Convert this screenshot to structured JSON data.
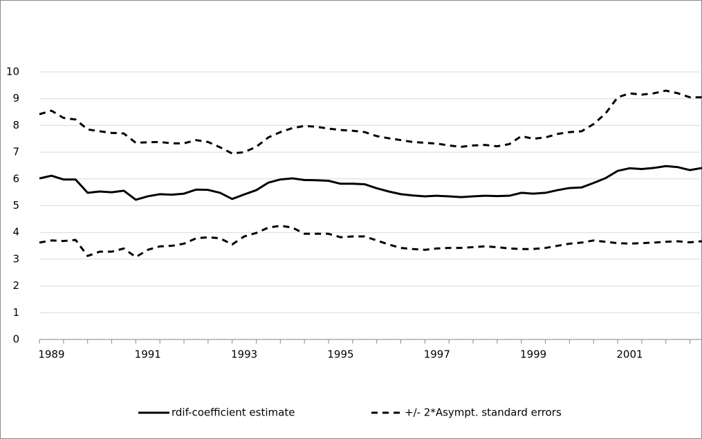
{
  "chart_data": {
    "type": "line",
    "categories": [
      null,
      "1989",
      null,
      null,
      null,
      null,
      null,
      null,
      null,
      "1991",
      null,
      null,
      null,
      null,
      null,
      null,
      null,
      "1993",
      null,
      null,
      null,
      null,
      null,
      null,
      null,
      "1995",
      null,
      null,
      null,
      null,
      null,
      null,
      null,
      "1997",
      null,
      null,
      null,
      null,
      null,
      null,
      null,
      "1999",
      null,
      null,
      null,
      null,
      null,
      null,
      null,
      "2001",
      null,
      null,
      null,
      null,
      null,
      null
    ],
    "series": [
      {
        "name": "rdif-coefficient estimate",
        "color": "#000000",
        "dashed": false,
        "values": [
          6.02,
          6.12,
          5.98,
          5.98,
          5.48,
          5.53,
          5.5,
          5.56,
          5.22,
          5.35,
          5.43,
          5.41,
          5.45,
          5.6,
          5.59,
          5.48,
          5.25,
          5.42,
          5.58,
          5.86,
          5.98,
          6.02,
          5.96,
          5.95,
          5.93,
          5.82,
          5.82,
          5.8,
          5.65,
          5.53,
          5.43,
          5.38,
          5.35,
          5.37,
          5.35,
          5.32,
          5.35,
          5.37,
          5.36,
          5.37,
          5.48,
          5.45,
          5.48,
          5.58,
          5.66,
          5.68,
          5.85,
          6.03,
          6.3,
          6.4,
          6.37,
          6.41,
          6.48,
          6.44,
          6.33,
          6.41
        ]
      },
      {
        "name": "+/- 2*Asympt. standard errors",
        "color": "#000000",
        "dashed": true,
        "upper": [
          8.42,
          8.55,
          8.28,
          8.22,
          7.85,
          7.78,
          7.72,
          7.7,
          7.35,
          7.37,
          7.38,
          7.33,
          7.33,
          7.45,
          7.38,
          7.18,
          6.95,
          7.0,
          7.2,
          7.55,
          7.75,
          7.9,
          7.98,
          7.95,
          7.88,
          7.83,
          7.8,
          7.75,
          7.6,
          7.52,
          7.45,
          7.38,
          7.35,
          7.32,
          7.25,
          7.2,
          7.25,
          7.27,
          7.22,
          7.3,
          7.6,
          7.5,
          7.55,
          7.68,
          7.75,
          7.78,
          8.05,
          8.45,
          9.05,
          9.2,
          9.15,
          9.2,
          9.3,
          9.2,
          9.05,
          9.05
        ],
        "lower": [
          3.62,
          3.7,
          3.68,
          3.72,
          3.12,
          3.28,
          3.28,
          3.4,
          3.08,
          3.35,
          3.48,
          3.5,
          3.58,
          3.78,
          3.82,
          3.78,
          3.55,
          3.85,
          3.98,
          4.18,
          4.25,
          4.18,
          3.95,
          3.95,
          3.95,
          3.82,
          3.85,
          3.85,
          3.7,
          3.55,
          3.42,
          3.38,
          3.35,
          3.4,
          3.42,
          3.42,
          3.45,
          3.48,
          3.45,
          3.4,
          3.38,
          3.38,
          3.42,
          3.5,
          3.58,
          3.62,
          3.7,
          3.65,
          3.6,
          3.58,
          3.6,
          3.62,
          3.65,
          3.67,
          3.63,
          3.67
        ]
      }
    ],
    "ylim": [
      0,
      10
    ],
    "yticks": [
      0,
      1,
      2,
      3,
      4,
      5,
      6,
      7,
      8,
      9,
      10
    ],
    "grid": true,
    "legend": "bottom"
  }
}
